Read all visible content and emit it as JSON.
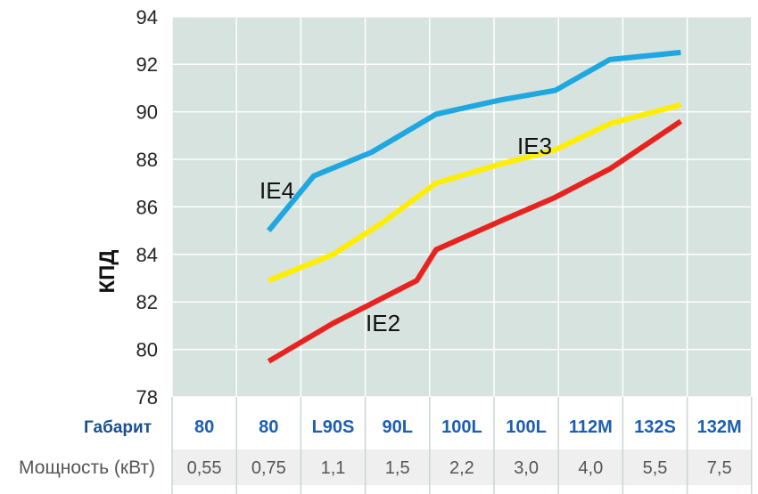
{
  "chart_data": {
    "type": "line",
    "ylabel": "КПД",
    "ylim": [
      78,
      94
    ],
    "yticks": [
      "78",
      "80",
      "82",
      "84",
      "86",
      "88",
      "90",
      "92",
      "94"
    ],
    "table": {
      "frame_label": "Габарит",
      "power_label": "Мощность (кВт)",
      "frames": [
        "80",
        "80",
        "L90S",
        "90L",
        "100L",
        "100L",
        "112M",
        "132S",
        "132M"
      ],
      "powers": [
        "0,55",
        "0,75",
        "1,1",
        "1,5",
        "2,2",
        "3,0",
        "4,0",
        "5,5",
        "7,5"
      ]
    },
    "series": [
      {
        "name": "IE4",
        "color": "#1ea7e1",
        "points": [
          [
            1,
            85.0
          ],
          [
            1.7,
            87.3
          ],
          [
            2.6,
            88.3
          ],
          [
            3.6,
            89.9
          ],
          [
            4.6,
            90.5
          ],
          [
            5.45,
            90.9
          ],
          [
            6.3,
            92.2
          ],
          [
            7.4,
            92.5
          ]
        ]
      },
      {
        "name": "IE3",
        "color": "#ffee00",
        "points": [
          [
            1,
            82.9
          ],
          [
            2.0,
            84.0
          ],
          [
            2.75,
            85.3
          ],
          [
            3.6,
            87.0
          ],
          [
            4.6,
            87.8
          ],
          [
            5.45,
            88.4
          ],
          [
            6.3,
            89.5
          ],
          [
            7.4,
            90.3
          ]
        ]
      },
      {
        "name": "IE2",
        "color": "#e8231f",
        "points": [
          [
            1,
            79.5
          ],
          [
            2.0,
            81.1
          ],
          [
            3.3,
            82.9
          ],
          [
            3.6,
            84.2
          ],
          [
            4.6,
            85.4
          ],
          [
            5.45,
            86.4
          ],
          [
            6.3,
            87.6
          ],
          [
            7.4,
            89.6
          ]
        ]
      }
    ]
  }
}
